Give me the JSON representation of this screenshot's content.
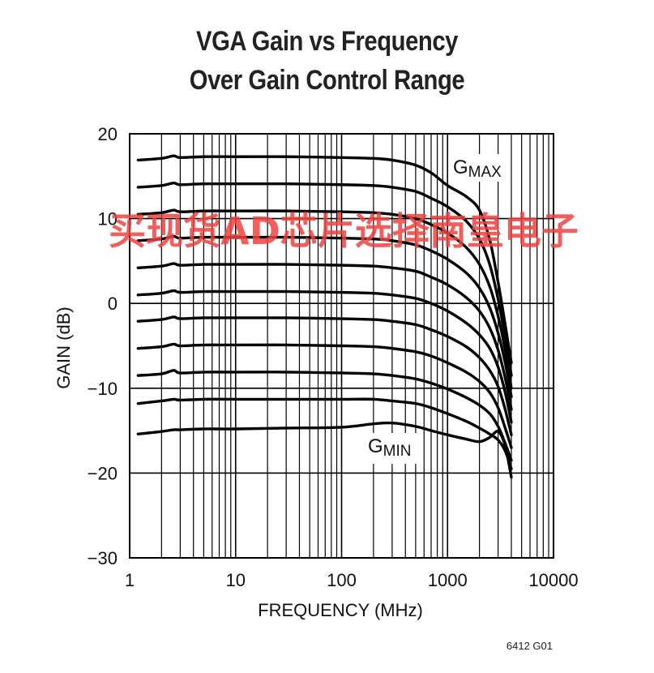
{
  "chart_data": {
    "type": "line",
    "title_line1": "VGA Gain vs Frequency",
    "title_line2": "Over Gain Control Range",
    "xlabel": "FREQUENCY (MHz)",
    "ylabel": "GAIN (dB)",
    "xscale": "log",
    "xlim": [
      1,
      10000
    ],
    "ylim": [
      -30,
      20
    ],
    "grid": true,
    "x_ticks": [
      1,
      10,
      100,
      1000,
      10000
    ],
    "x_tick_labels": [
      "1",
      "10",
      "100",
      "1000",
      "10000"
    ],
    "y_ticks": [
      20,
      10,
      0,
      -10,
      -20,
      -30
    ],
    "y_tick_labels": [
      "20",
      "10",
      "0",
      "−10",
      "−20",
      "−30"
    ],
    "annotations": {
      "gmax": {
        "base": "G",
        "sub": "MAX"
      },
      "gmin": {
        "base": "G",
        "sub": "MIN"
      }
    },
    "x": [
      1.2,
      2,
      2.6,
      3,
      5,
      10,
      30,
      100,
      200,
      300,
      500,
      700,
      1000,
      1500,
      2000,
      2500,
      3000,
      3500,
      4000
    ],
    "series": [
      {
        "values": [
          16.9,
          17.1,
          17.4,
          17.2,
          17.3,
          17.3,
          17.3,
          17.2,
          17.1,
          16.9,
          16.3,
          15.4,
          13.9,
          12.6,
          11.0,
          7.5,
          2.5,
          -2.5,
          -7.0
        ]
      },
      {
        "values": [
          13.7,
          13.9,
          14.2,
          14.0,
          14.1,
          14.1,
          14.1,
          14.0,
          13.9,
          13.7,
          13.2,
          12.4,
          11.4,
          9.7,
          7.6,
          4.6,
          0.5,
          -4.0,
          -8.5
        ]
      },
      {
        "values": [
          10.5,
          10.7,
          11.0,
          10.8,
          10.9,
          10.9,
          10.9,
          10.8,
          10.7,
          10.5,
          10.0,
          9.3,
          8.3,
          6.6,
          4.6,
          2.0,
          -1.5,
          -5.5,
          -10.0
        ]
      },
      {
        "values": [
          7.4,
          7.6,
          7.9,
          7.7,
          7.8,
          7.8,
          7.8,
          7.7,
          7.6,
          7.4,
          6.9,
          6.2,
          5.2,
          3.6,
          1.8,
          -0.5,
          -3.5,
          -7.0,
          -11.0
        ]
      },
      {
        "values": [
          4.2,
          4.4,
          4.7,
          4.5,
          4.6,
          4.6,
          4.6,
          4.5,
          4.4,
          4.2,
          3.8,
          3.1,
          2.2,
          0.7,
          -0.9,
          -2.9,
          -5.5,
          -8.8,
          -12.5
        ]
      },
      {
        "values": [
          1.0,
          1.2,
          1.5,
          1.3,
          1.4,
          1.4,
          1.4,
          1.3,
          1.2,
          1.0,
          0.6,
          0.0,
          -0.9,
          -2.3,
          -3.7,
          -5.3,
          -7.5,
          -10.5,
          -14.0
        ]
      },
      {
        "values": [
          -2.1,
          -1.9,
          -1.6,
          -1.8,
          -1.7,
          -1.7,
          -1.7,
          -1.8,
          -1.9,
          -2.1,
          -2.5,
          -3.1,
          -3.9,
          -5.1,
          -6.4,
          -7.9,
          -9.8,
          -12.5,
          -15.5
        ]
      },
      {
        "values": [
          -5.3,
          -5.1,
          -4.8,
          -5.0,
          -4.9,
          -4.9,
          -4.9,
          -5.0,
          -5.1,
          -5.3,
          -5.7,
          -6.2,
          -7.0,
          -8.1,
          -9.2,
          -10.5,
          -12.3,
          -14.7,
          -17.0
        ]
      },
      {
        "values": [
          -8.5,
          -8.3,
          -7.9,
          -8.2,
          -8.1,
          -8.1,
          -8.1,
          -8.2,
          -8.3,
          -8.5,
          -8.9,
          -9.4,
          -10.1,
          -11.1,
          -12.0,
          -13.0,
          -14.5,
          -16.5,
          -18.5
        ]
      },
      {
        "values": [
          -11.8,
          -11.5,
          -11.3,
          -11.4,
          -11.3,
          -11.3,
          -11.3,
          -11.3,
          -11.3,
          -11.5,
          -11.8,
          -12.3,
          -13.0,
          -13.9,
          -14.7,
          -15.4,
          -16.1,
          -17.4,
          -19.5
        ]
      },
      {
        "values": [
          -15.4,
          -15.1,
          -14.9,
          -14.9,
          -14.8,
          -14.8,
          -14.7,
          -14.6,
          -14.2,
          -14.1,
          -14.5,
          -15.0,
          -15.5,
          -16.0,
          -16.3,
          -15.8,
          -15.1,
          -16.8,
          -20.5
        ]
      }
    ],
    "figure_id": "6412 G01"
  },
  "watermark": "买现货AD芯片选择南皇电子",
  "colors": {
    "curve": "#000000",
    "grid": "#000000",
    "watermark": "#f0423f"
  }
}
